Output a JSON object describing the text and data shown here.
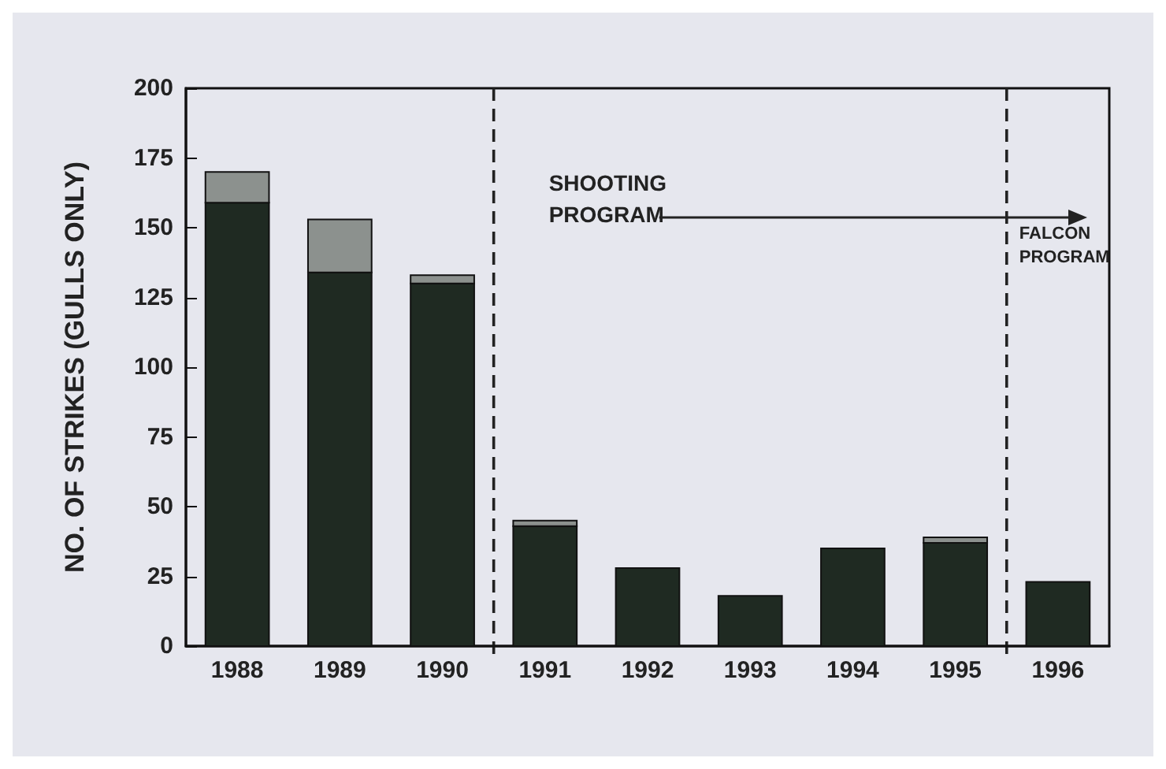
{
  "chart_data": {
    "type": "bar",
    "ylabel": "NO. OF STRIKES (GULLS ONLY)",
    "x": [
      1988,
      1989,
      1990,
      1991,
      1992,
      1993,
      1994,
      1995,
      1996
    ],
    "xlim": [
      1987.5,
      1996.5
    ],
    "xticks": [
      1988,
      1989,
      1990,
      1991,
      1992,
      1993,
      1994,
      1995,
      1996
    ],
    "stacked": true,
    "series": [
      {
        "color": "#1f2a22",
        "values": [
          159,
          134,
          130,
          43,
          28,
          18,
          35,
          37,
          23
        ]
      },
      {
        "color": "#8c918e",
        "values": [
          11,
          19,
          3,
          2,
          null,
          null,
          null,
          2,
          null
        ]
      }
    ],
    "ylim": [
      0,
      200
    ],
    "yticks": [
      0,
      25,
      50,
      75,
      100,
      125,
      150,
      175,
      200
    ],
    "grid": false,
    "ref_lines": [
      {
        "axis": "x",
        "value": 1990.5,
        "label": "SHOOTING\nPROGRAM",
        "line_style": "dashed",
        "color": "#222222"
      },
      {
        "axis": "x",
        "value": 1995.5,
        "label": "FALCON\nPROGRAM",
        "line_style": "dashed",
        "color": "#222222"
      }
    ]
  }
}
